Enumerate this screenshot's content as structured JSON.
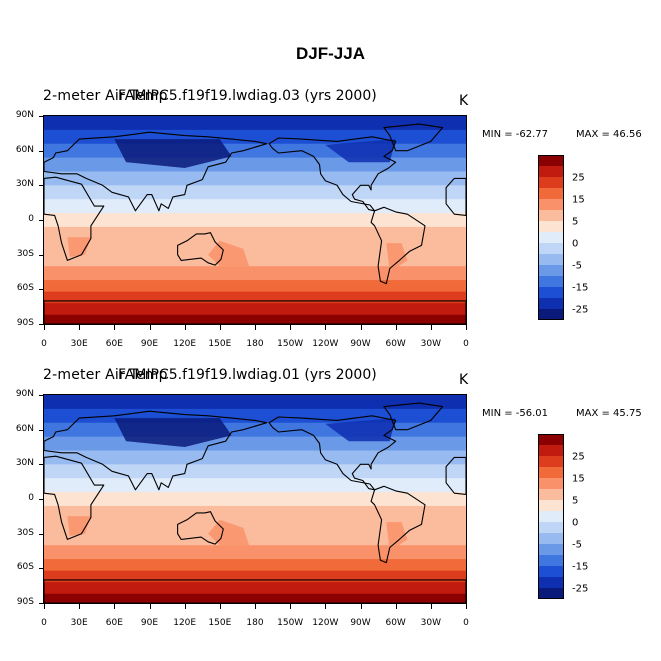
{
  "figure": {
    "title": "DJF-JJA"
  },
  "chart_data": [
    {
      "type": "heatmap",
      "title_left": "2-meter Air Temp",
      "title_center": "FAMIPC5.f19f19.lwdiag.03 (yrs 2000)",
      "units": "K",
      "min_label": "MIN = -62.77",
      "max_label": "MAX =  46.56",
      "xticks": [
        "0",
        "30E",
        "60E",
        "90E",
        "120E",
        "150E",
        "180",
        "150W",
        "120W",
        "90W",
        "60W",
        "30W",
        "0"
      ],
      "yticks": [
        "90N",
        "60N",
        "30N",
        "0",
        "30S",
        "60S",
        "90S"
      ],
      "colorbar_levels": [
        "25",
        "15",
        "5",
        "0",
        "-5",
        "-15",
        "-25"
      ]
    },
    {
      "type": "heatmap",
      "title_left": "2-meter Air Temp",
      "title_center": "FAMIPC5.f19f19.lwdiag.01 (yrs 2000)",
      "units": "K",
      "min_label": "MIN = -56.01",
      "max_label": "MAX =  45.75",
      "xticks": [
        "0",
        "30E",
        "60E",
        "90E",
        "120E",
        "150E",
        "180",
        "150W",
        "120W",
        "90W",
        "60W",
        "30W",
        "0"
      ],
      "yticks": [
        "90N",
        "60N",
        "30N",
        "0",
        "30S",
        "60S",
        "90S"
      ],
      "colorbar_levels": [
        "25",
        "15",
        "5",
        "0",
        "-5",
        "-15",
        "-25"
      ]
    }
  ],
  "colors": {
    "colorbar": [
      "#8b0000",
      "#c11a0e",
      "#de3d1d",
      "#f06a3a",
      "#f9926a",
      "#fbbb9d",
      "#fde4d2",
      "#e0ecfa",
      "#bfd6f6",
      "#97bbf0",
      "#6a99e8",
      "#3f76e0",
      "#1c4fd3",
      "#0e2fb0",
      "#0a1a7a"
    ],
    "coast": "#000000"
  }
}
